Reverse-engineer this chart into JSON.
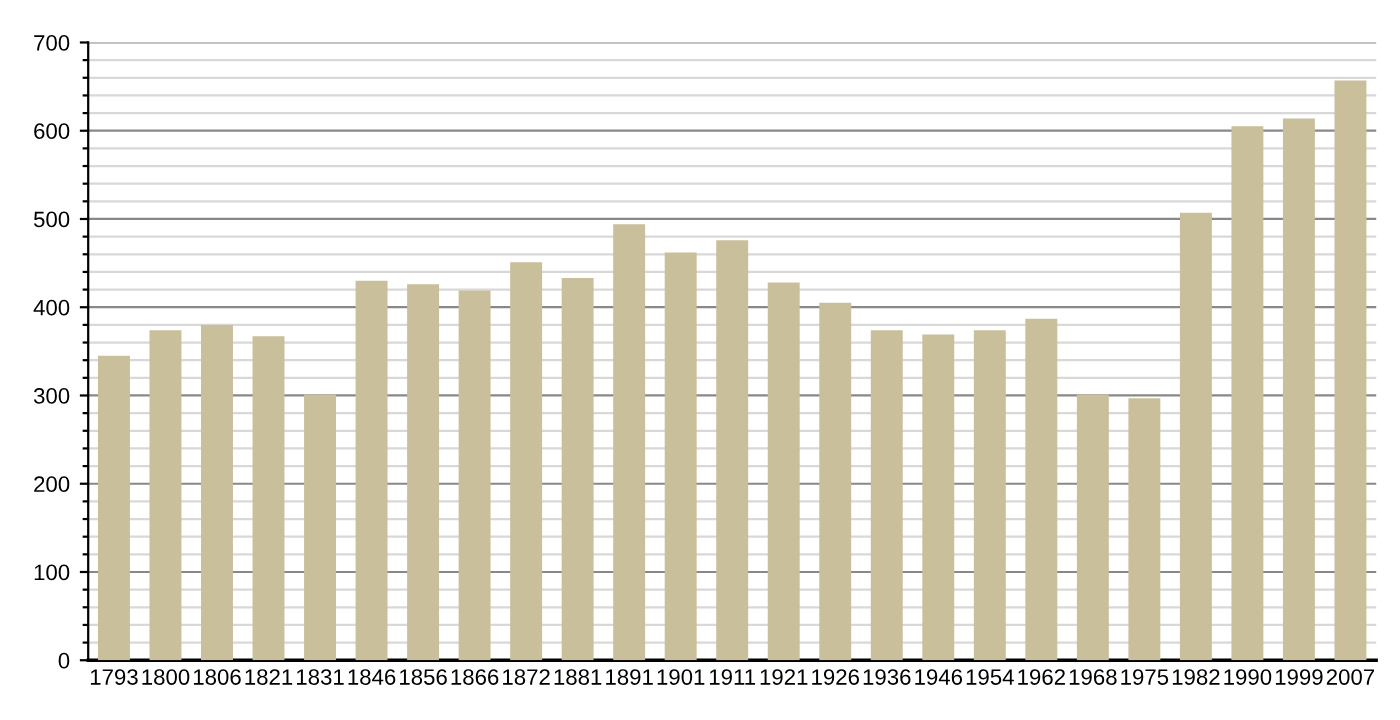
{
  "chart_data": {
    "type": "bar",
    "categories": [
      "1793",
      "1800",
      "1806",
      "1821",
      "1831",
      "1846",
      "1856",
      "1866",
      "1872",
      "1881",
      "1891",
      "1901",
      "1911",
      "1921",
      "1926",
      "1936",
      "1946",
      "1954",
      "1962",
      "1968",
      "1975",
      "1982",
      "1990",
      "1999",
      "2007"
    ],
    "values": [
      345,
      374,
      380,
      367,
      301,
      430,
      426,
      419,
      451,
      433,
      494,
      462,
      476,
      428,
      405,
      374,
      369,
      374,
      387,
      301,
      297,
      507,
      605,
      614,
      657
    ],
    "color": "#c9bf9b",
    "ylim": [
      0,
      700
    ],
    "yticks": [
      0,
      {
        "value": 20,
        "label": null
      },
      {
        "value": 40,
        "label": null
      },
      {
        "value": 60,
        "label": null
      },
      {
        "value": 80,
        "label": null
      },
      100,
      {
        "value": 120,
        "label": null
      },
      {
        "value": 140,
        "label": null
      },
      {
        "value": 160,
        "label": null
      },
      {
        "value": 180,
        "label": null
      },
      200,
      {
        "value": 220,
        "label": null
      },
      {
        "value": 240,
        "label": null
      },
      {
        "value": 260,
        "label": null
      },
      {
        "value": 280,
        "label": null
      },
      300,
      {
        "value": 320,
        "label": null
      },
      {
        "value": 340,
        "label": null
      },
      {
        "value": 360,
        "label": null
      },
      {
        "value": 380,
        "label": null
      },
      400,
      {
        "value": 420,
        "label": null
      },
      {
        "value": 440,
        "label": null
      },
      {
        "value": 460,
        "label": null
      },
      {
        "value": 480,
        "label": null
      },
      500,
      {
        "value": 520,
        "label": null
      },
      {
        "value": 540,
        "label": null
      },
      {
        "value": 560,
        "label": null
      },
      {
        "value": 580,
        "label": null
      },
      600,
      {
        "value": 620,
        "label": null
      },
      {
        "value": 640,
        "label": null
      },
      {
        "value": 660,
        "label": null
      },
      {
        "value": 680,
        "label": null
      },
      700
    ],
    "grid": "y"
  }
}
